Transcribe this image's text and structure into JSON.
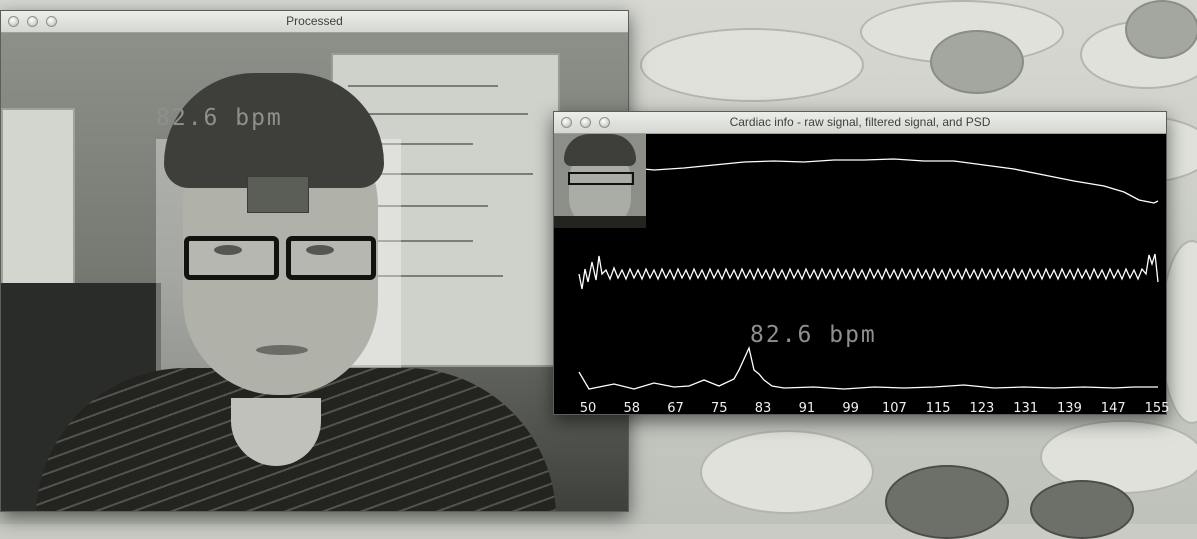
{
  "processed_window": {
    "title": "Processed",
    "bpm_overlay": "82.6 bpm"
  },
  "cardiac_window": {
    "title": "Cardiac info - raw signal, filtered signal, and PSD",
    "bpm_label": "82.6 bpm",
    "psd_axis_ticks": [
      "50",
      "58",
      "67",
      "75",
      "83",
      "91",
      "99",
      "107",
      "115",
      "123",
      "131",
      "139",
      "147",
      "155"
    ]
  },
  "colors": {
    "trace": "#ffffff",
    "plot_background": "#000000",
    "overlay_text": "#8e918b"
  }
}
